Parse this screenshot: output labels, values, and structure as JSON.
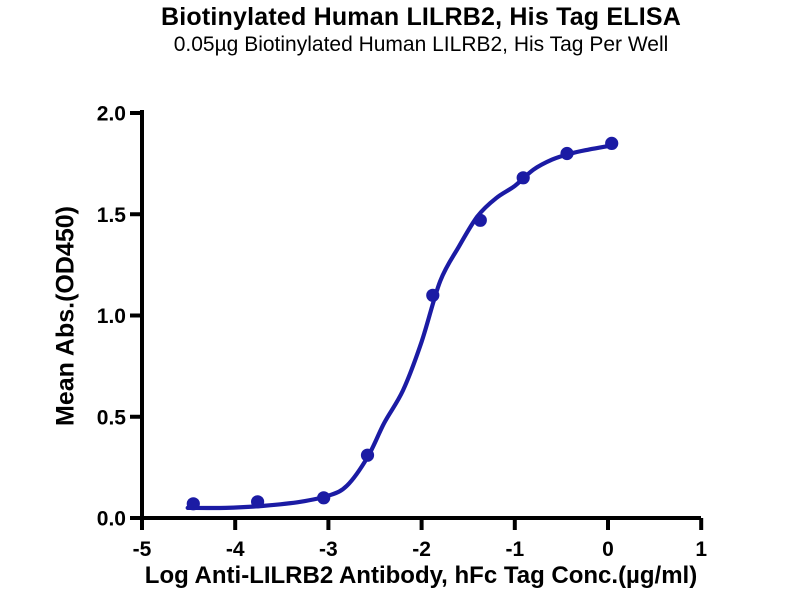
{
  "chart_data": {
    "type": "scatter",
    "title": "Biotinylated Human LILRB2, His Tag ELISA",
    "subtitle": "0.05µg Biotinylated Human LILRB2, His Tag Per Well",
    "xlabel": "Log Anti-LILRB2 Antibody, hFc Tag Conc.(µg/ml)",
    "ylabel": "Mean Abs.(OD450)",
    "xlim": [
      -5,
      1
    ],
    "ylim": [
      0,
      2
    ],
    "xticks": [
      -5,
      -4,
      -3,
      -2,
      -1,
      0,
      1
    ],
    "xtick_labels": [
      "-5",
      "-4",
      "-3",
      "-2",
      "-1",
      "0",
      "1"
    ],
    "yticks": [
      0,
      0.5,
      1,
      1.5,
      2
    ],
    "ytick_labels": [
      "0.0",
      "0.5",
      "1.0",
      "1.5",
      "2.0"
    ],
    "grid": false,
    "legend": "none",
    "points": [
      {
        "x": -4.45,
        "y": 0.07
      },
      {
        "x": -3.76,
        "y": 0.08
      },
      {
        "x": -3.05,
        "y": 0.1
      },
      {
        "x": -2.58,
        "y": 0.31
      },
      {
        "x": -1.88,
        "y": 1.1
      },
      {
        "x": -1.37,
        "y": 1.47
      },
      {
        "x": -0.91,
        "y": 1.68
      },
      {
        "x": -0.44,
        "y": 1.8
      },
      {
        "x": 0.04,
        "y": 1.85
      }
    ],
    "fit_curve": {
      "model": "4PL sigmoid fit",
      "samples": [
        [
          -4.51,
          0.05
        ],
        [
          -4.1,
          0.05
        ],
        [
          -3.7,
          0.06
        ],
        [
          -3.3,
          0.08
        ],
        [
          -3.0,
          0.11
        ],
        [
          -2.8,
          0.16
        ],
        [
          -2.58,
          0.3
        ],
        [
          -2.4,
          0.47
        ],
        [
          -2.2,
          0.63
        ],
        [
          -2.0,
          0.87
        ],
        [
          -1.8,
          1.17
        ],
        [
          -1.6,
          1.34
        ],
        [
          -1.4,
          1.49
        ],
        [
          -1.2,
          1.58
        ],
        [
          -1.0,
          1.64
        ],
        [
          -0.8,
          1.72
        ],
        [
          -0.6,
          1.77
        ],
        [
          -0.4,
          1.8
        ],
        [
          -0.2,
          1.82
        ],
        [
          0.04,
          1.84
        ]
      ]
    },
    "colors": {
      "marker": "#1b1ba4",
      "line": "#1b1ba4",
      "axis": "#000000",
      "text": "#000000",
      "background": "#ffffff"
    }
  }
}
